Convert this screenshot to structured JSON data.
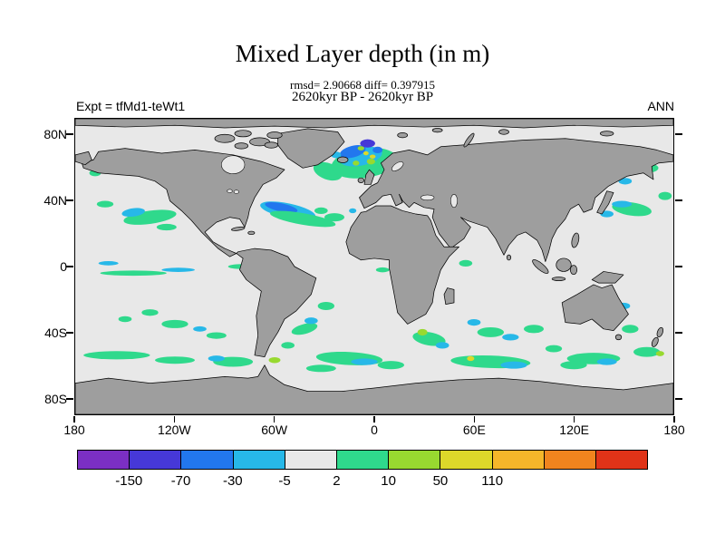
{
  "header": {
    "title": "Mixed Layer depth (in m)",
    "stats_line": "rmsd= 2.90668 diff= 0.397915",
    "period_line": "2620kyr BP - 2620kyr BP",
    "experiment_label": "Expt = tfMd1-teWt1",
    "season_label": "ANN"
  },
  "map": {
    "land_color": "#9e9e9e",
    "ocean_color": "#e8e8e8",
    "lat_ticks": [
      {
        "label": "80N",
        "lat": 80
      },
      {
        "label": "40N",
        "lat": 40
      },
      {
        "label": "0",
        "lat": 0
      },
      {
        "label": "40S",
        "lat": -40
      },
      {
        "label": "80S",
        "lat": -80
      }
    ],
    "lon_ticks": [
      {
        "label": "180",
        "lon": -180
      },
      {
        "label": "120W",
        "lon": -120
      },
      {
        "label": "60W",
        "lon": -60
      },
      {
        "label": "0",
        "lon": 0
      },
      {
        "label": "60E",
        "lon": 60
      },
      {
        "label": "120E",
        "lon": 120
      },
      {
        "label": "180",
        "lon": 180
      }
    ]
  },
  "colorbar": {
    "colors": [
      "#7b2fc4",
      "#4638d8",
      "#2277ee",
      "#27b8e8",
      "#e8e8e8",
      "#2fd98c",
      "#98d930",
      "#ddd82a",
      "#f5b62a",
      "#f0841e",
      "#e03318"
    ],
    "tick_labels": [
      "-150",
      "-70",
      "-30",
      "-5",
      "2",
      "10",
      "50",
      "110"
    ]
  },
  "chart_data": {
    "type": "heatmap",
    "subtype": "filled-contour-world-map",
    "title": "Mixed Layer depth (in m)",
    "units": "m",
    "rmsd": 2.90668,
    "diff": 0.397915,
    "period": "2620kyr BP - 2620kyr BP",
    "experiment": "tfMd1-teWt1",
    "season": "ANN",
    "projection": "equirectangular",
    "lon_range": [
      -180,
      180
    ],
    "lat_range": [
      -90,
      90
    ],
    "contour_levels": [
      -150,
      -70,
      -30,
      -5,
      2,
      10,
      50,
      110
    ],
    "palette": [
      "#7b2fc4",
      "#4638d8",
      "#2277ee",
      "#27b8e8",
      "#e8e8e8",
      "#2fd98c",
      "#98d930",
      "#ddd82a",
      "#f5b62a",
      "#f0841e",
      "#e03318"
    ],
    "background_bucket": "-5 to 2 (light gray, most of the ocean)",
    "anomaly_regions": [
      "North Atlantic subpolar / Nordic Seas: strong negative core (blue, -70 to -150) ringed by cyan and positive green-yellow patches",
      "Gulf Stream extension: negative cyan/blue band with positive green band just south of it",
      "Northeast Pacific: positive green streaks with cyan cores",
      "Kuroshio extension, Okhotsk and Bering Seas: scattered positive green and negative cyan patches",
      "Southern Ocean 40S-60S at all longitudes: widespread positive green bands with embedded cyan negatives and a few yellow spots",
      "Agulhas region south of Africa: positive green with yellow-green maxima",
      "Argentine basin and south Indian Ocean: mixed green/cyan anomalies"
    ],
    "patch_coordinates": "x = longitude + 180, y = 90 - latitude (degrees); format [cx, cy, rx, ry, rotation_deg, palette_index]",
    "patches": [
      [
        152,
        32,
        9,
        5,
        20,
        5
      ],
      [
        174,
        27,
        20,
        9,
        -8,
        5
      ],
      [
        186,
        30,
        6,
        3,
        0,
        5
      ],
      [
        172,
        23,
        13,
        5.5,
        -12,
        3
      ],
      [
        167,
        20,
        8,
        3.5,
        -15,
        2
      ],
      [
        176,
        15,
        4.5,
        2.5,
        0,
        1
      ],
      [
        182,
        19,
        3,
        2,
        0,
        2
      ],
      [
        178,
        26,
        2.5,
        1.8,
        0,
        6
      ],
      [
        169,
        27,
        2,
        1.5,
        0,
        6
      ],
      [
        172,
        18,
        2,
        1.3,
        0,
        6
      ],
      [
        175,
        21,
        1.6,
        1.2,
        0,
        7
      ],
      [
        179,
        23,
        1.8,
        1.2,
        0,
        7
      ],
      [
        157,
        22,
        3,
        2,
        0,
        3
      ],
      [
        128,
        56,
        17,
        4.5,
        12,
        3
      ],
      [
        124,
        54,
        10,
        2.5,
        12,
        2
      ],
      [
        137,
        61,
        20,
        3.5,
        10,
        5
      ],
      [
        156,
        60,
        6,
        2.5,
        0,
        5
      ],
      [
        148,
        56,
        4,
        2,
        0,
        5
      ],
      [
        167,
        56,
        2.2,
        1.5,
        0,
        3
      ],
      [
        45,
        60,
        16,
        4,
        -8,
        5
      ],
      [
        35,
        57,
        7,
        2.5,
        -8,
        3
      ],
      [
        18,
        52,
        5,
        2,
        0,
        5
      ],
      [
        12,
        33,
        3.5,
        2,
        0,
        5
      ],
      [
        55,
        66,
        6,
        2,
        0,
        5
      ],
      [
        335,
        55,
        12,
        4,
        8,
        5
      ],
      [
        329,
        52,
        6,
        2,
        0,
        3
      ],
      [
        344,
        30,
        7,
        3,
        0,
        5
      ],
      [
        331,
        38,
        4,
        2,
        0,
        3
      ],
      [
        355,
        47,
        4,
        2.5,
        0,
        5
      ],
      [
        320,
        58,
        4,
        2,
        0,
        3
      ],
      [
        35,
        94,
        20,
        1.6,
        0,
        5
      ],
      [
        62,
        92,
        10,
        1.3,
        0,
        3
      ],
      [
        100,
        90,
        8,
        1.5,
        0,
        5
      ],
      [
        20,
        88,
        6,
        1.3,
        0,
        3
      ],
      [
        185,
        92,
        4,
        1.5,
        0,
        5
      ],
      [
        235,
        88,
        4,
        2,
        0,
        5
      ],
      [
        60,
        125,
        8,
        2.5,
        0,
        5
      ],
      [
        85,
        132,
        6,
        2,
        0,
        5
      ],
      [
        75,
        128,
        4,
        1.6,
        0,
        3
      ],
      [
        45,
        118,
        5,
        2,
        0,
        5
      ],
      [
        30,
        122,
        4,
        1.8,
        0,
        5
      ],
      [
        138,
        128,
        8,
        3,
        -15,
        5
      ],
      [
        142,
        123,
        4,
        2,
        0,
        3
      ],
      [
        151,
        114,
        5,
        2.5,
        0,
        5
      ],
      [
        120,
        147,
        3.5,
        1.8,
        0,
        6
      ],
      [
        128,
        138,
        4,
        2,
        0,
        5
      ],
      [
        165,
        146,
        20,
        4,
        3,
        5
      ],
      [
        174,
        148,
        8,
        2,
        0,
        3
      ],
      [
        148,
        152,
        9,
        2.2,
        0,
        5
      ],
      [
        190,
        150,
        8,
        2.5,
        0,
        5
      ],
      [
        213,
        134,
        10,
        4,
        10,
        5
      ],
      [
        209,
        130,
        3,
        2,
        0,
        6
      ],
      [
        221,
        138,
        4,
        2,
        0,
        3
      ],
      [
        250,
        130,
        8,
        3,
        0,
        5
      ],
      [
        262,
        133,
        5,
        2,
        0,
        3
      ],
      [
        276,
        128,
        6,
        2.5,
        0,
        5
      ],
      [
        240,
        124,
        4,
        2,
        0,
        3
      ],
      [
        250,
        148,
        24,
        3.8,
        2,
        5
      ],
      [
        264,
        150,
        8,
        2.2,
        0,
        3
      ],
      [
        238,
        146,
        2.2,
        1.5,
        0,
        7
      ],
      [
        288,
        140,
        5,
        2.2,
        0,
        5
      ],
      [
        312,
        146,
        16,
        3.5,
        0,
        5
      ],
      [
        320,
        148,
        6,
        2,
        0,
        3
      ],
      [
        344,
        142,
        8,
        3,
        0,
        5
      ],
      [
        352,
        143,
        2.5,
        1.6,
        0,
        6
      ],
      [
        334,
        128,
        5,
        2.5,
        0,
        5
      ],
      [
        330,
        114,
        4,
        2,
        0,
        3
      ],
      [
        300,
        150,
        8,
        2.5,
        0,
        5
      ],
      [
        95,
        148,
        12,
        3,
        0,
        5
      ],
      [
        85,
        146,
        5,
        1.8,
        0,
        3
      ],
      [
        25,
        144,
        20,
        2.5,
        0,
        5
      ],
      [
        60,
        147,
        12,
        2.2,
        0,
        5
      ]
    ]
  }
}
